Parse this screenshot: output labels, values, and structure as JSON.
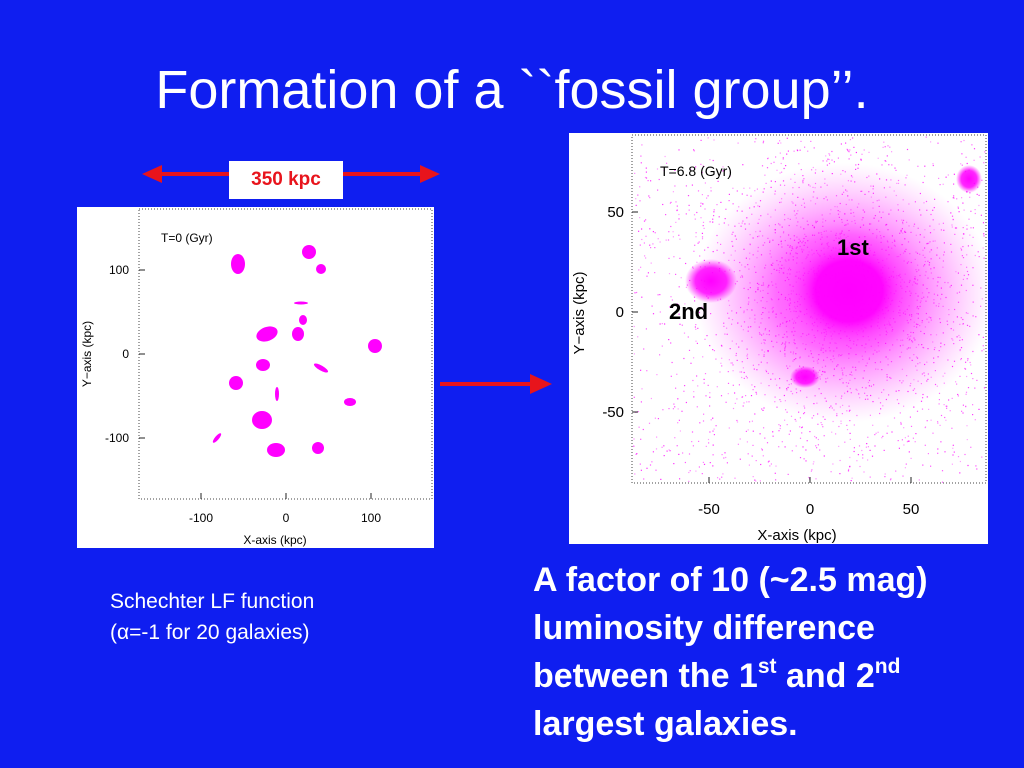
{
  "slide": {
    "title": "Formation of a ``fossil group’’.",
    "scale_label": "350 kpc",
    "caption_line1": "Schechter LF function",
    "caption_line2_prefix": "(",
    "caption_alpha": "α",
    "caption_line2_suffix": "=-1 for 20 galaxies)",
    "main_line1": "A factor of 10 (~2.5 mag)",
    "main_line2": "luminosity difference",
    "main_line3a": "between the 1",
    "main_sup1": "st",
    "main_line3b": " and 2",
    "main_sup2": "nd",
    "main_line4": "largest galaxies."
  },
  "colors": {
    "background": "#0f1ef0",
    "arrow": "#e8141c",
    "points": "#ff00ff"
  },
  "left_plot": {
    "time_label": "T=0 (Gyr)",
    "xlabel": "X-axis (kpc)",
    "ylabel": "Y−axis (kpc)",
    "xticks": [
      "-100",
      "0",
      "100"
    ],
    "yticks": [
      "100",
      "0",
      "-100"
    ]
  },
  "right_plot": {
    "time_label": "T=6.8 (Gyr)",
    "xlabel": "X-axis (kpc)",
    "ylabel": "Y−axis (kpc)",
    "xticks": [
      "-50",
      "0",
      "50"
    ],
    "yticks": [
      "50",
      "0",
      "-50"
    ],
    "label_first": "1st",
    "label_second": "2nd"
  }
}
